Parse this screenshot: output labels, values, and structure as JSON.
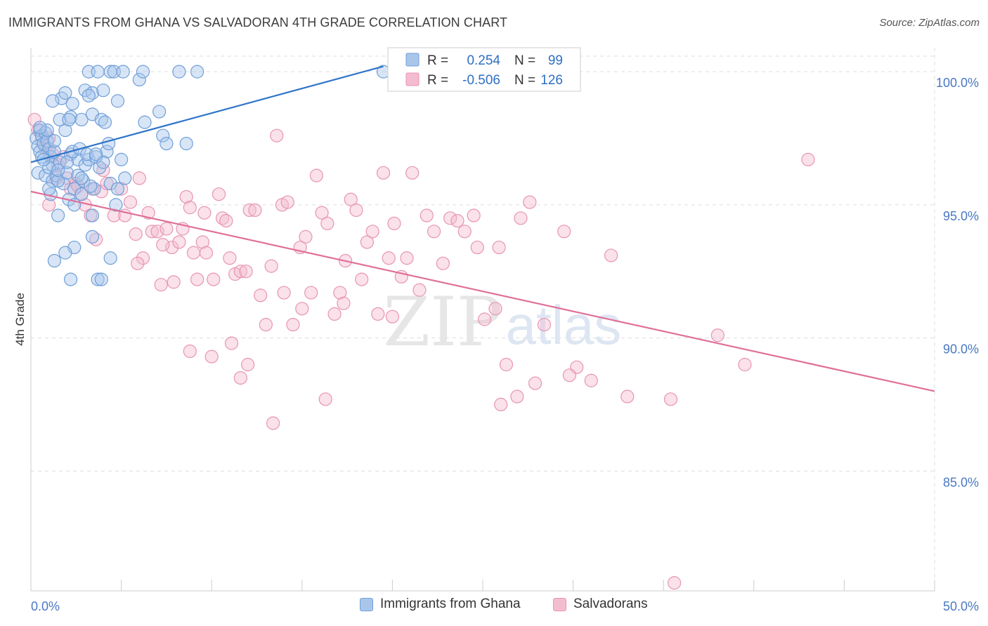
{
  "header": {
    "title": "IMMIGRANTS FROM GHANA VS SALVADORAN 4TH GRADE CORRELATION CHART",
    "source": "Source: ZipAtlas.com"
  },
  "watermark": {
    "zip": "ZIP",
    "atlas": "atlas"
  },
  "colors": {
    "blue_fill": "#a9c6ea",
    "blue_stroke": "#6f9fd8",
    "blue_line": "#2e74c9",
    "pink_fill": "#f4bcd0",
    "pink_stroke": "#e795b3",
    "pink_line": "#e07099",
    "axis_label": "#4a78c2",
    "grid": "#dddddd"
  },
  "legend": {
    "r_label": "R =",
    "n_label": "N =",
    "entries": [
      {
        "series": "Immigrants from Ghana",
        "r": "0.254",
        "n": "99"
      },
      {
        "series": "Salvadorans",
        "r": "-0.506",
        "n": "126"
      }
    ]
  },
  "chart_data": {
    "type": "scatter",
    "title": "IMMIGRANTS FROM GHANA VS SALVADORAN 4TH GRADE CORRELATION CHART",
    "xlabel": "",
    "ylabel": "4th Grade",
    "xlim": [
      0,
      50
    ],
    "ylim": [
      80.5,
      100.9
    ],
    "x_tick_labels": [
      "0.0%",
      "50.0%"
    ],
    "y_ticks": [
      85,
      90,
      95,
      100
    ],
    "y_tick_labels": [
      "85.0%",
      "90.0%",
      "95.0%",
      "100.0%"
    ],
    "grid": true,
    "legend_position": "top-center",
    "series": [
      {
        "name": "Immigrants from Ghana",
        "r": 0.254,
        "n": 99,
        "trendline": {
          "x": [
            0,
            19.5
          ],
          "y": [
            96.6,
            100.2
          ]
        },
        "points": [
          [
            0.3,
            97.5
          ],
          [
            0.4,
            97.2
          ],
          [
            0.5,
            97.8
          ],
          [
            0.5,
            97.0
          ],
          [
            0.6,
            97.6
          ],
          [
            0.7,
            97.3
          ],
          [
            0.8,
            97.7
          ],
          [
            0.9,
            97.4
          ],
          [
            1.0,
            97.1
          ],
          [
            1.1,
            96.8
          ],
          [
            1.2,
            96.5
          ],
          [
            1.3,
            97.0
          ],
          [
            0.4,
            96.2
          ],
          [
            0.6,
            96.8
          ],
          [
            0.8,
            96.1
          ],
          [
            1.0,
            96.4
          ],
          [
            1.2,
            95.9
          ],
          [
            1.4,
            96.1
          ],
          [
            1.6,
            96.6
          ],
          [
            1.8,
            95.8
          ],
          [
            2.0,
            96.2
          ],
          [
            2.2,
            96.9
          ],
          [
            2.4,
            95.6
          ],
          [
            2.6,
            96.7
          ],
          [
            2.8,
            95.4
          ],
          [
            3.0,
            96.5
          ],
          [
            3.2,
            96.7
          ],
          [
            3.5,
            95.6
          ],
          [
            3.8,
            96.4
          ],
          [
            4.2,
            97.0
          ],
          [
            1.1,
            95.4
          ],
          [
            1.5,
            95.9
          ],
          [
            2.1,
            95.2
          ],
          [
            2.9,
            95.9
          ],
          [
            3.3,
            95.7
          ],
          [
            4.4,
            95.8
          ],
          [
            4.8,
            95.6
          ],
          [
            0.9,
            97.8
          ],
          [
            1.3,
            97.4
          ],
          [
            1.9,
            97.8
          ],
          [
            2.3,
            97.0
          ],
          [
            2.7,
            97.1
          ],
          [
            3.1,
            96.9
          ],
          [
            3.6,
            96.8
          ],
          [
            4.0,
            96.6
          ],
          [
            1.6,
            98.2
          ],
          [
            2.2,
            98.3
          ],
          [
            2.8,
            98.2
          ],
          [
            3.4,
            98.4
          ],
          [
            3.9,
            98.2
          ],
          [
            4.1,
            98.1
          ],
          [
            5.0,
            96.7
          ],
          [
            4.3,
            97.3
          ],
          [
            5.2,
            96.0
          ],
          [
            1.7,
            99.0
          ],
          [
            1.9,
            99.2
          ],
          [
            2.3,
            98.8
          ],
          [
            3.0,
            99.3
          ],
          [
            3.4,
            99.2
          ],
          [
            4.0,
            99.3
          ],
          [
            4.8,
            98.9
          ],
          [
            1.2,
            98.9
          ],
          [
            2.1,
            98.2
          ],
          [
            3.2,
            99.1
          ],
          [
            6.3,
            98.1
          ],
          [
            7.1,
            98.5
          ],
          [
            7.3,
            97.6
          ],
          [
            7.5,
            97.3
          ],
          [
            8.6,
            97.3
          ],
          [
            6.0,
            99.7
          ],
          [
            4.4,
            100.0
          ],
          [
            3.2,
            100.0
          ],
          [
            3.7,
            100.0
          ],
          [
            4.6,
            100.0
          ],
          [
            5.1,
            100.0
          ],
          [
            6.2,
            100.0
          ],
          [
            8.2,
            100.0
          ],
          [
            9.2,
            100.0
          ],
          [
            19.5,
            100.0
          ],
          [
            2.4,
            95.0
          ],
          [
            1.5,
            94.6
          ],
          [
            3.4,
            94.6
          ],
          [
            3.4,
            93.8
          ],
          [
            2.4,
            93.4
          ],
          [
            1.9,
            93.2
          ],
          [
            1.3,
            92.9
          ],
          [
            4.4,
            93.0
          ],
          [
            2.2,
            92.2
          ],
          [
            3.7,
            92.2
          ],
          [
            3.9,
            92.2
          ],
          [
            4.7,
            95.0
          ],
          [
            2.0,
            96.6
          ],
          [
            2.6,
            96.1
          ],
          [
            1.0,
            95.6
          ],
          [
            0.7,
            96.7
          ],
          [
            1.5,
            96.3
          ],
          [
            3.6,
            96.9
          ],
          [
            0.5,
            97.9
          ],
          [
            2.8,
            96.0
          ]
        ]
      },
      {
        "name": "Salvadorans",
        "r": -0.506,
        "n": 126,
        "trendline": {
          "x": [
            0,
            50
          ],
          "y": [
            95.5,
            88.0
          ]
        },
        "points": [
          [
            0.2,
            98.2
          ],
          [
            0.4,
            97.8
          ],
          [
            0.6,
            97.4
          ],
          [
            0.8,
            97.1
          ],
          [
            1.0,
            97.5
          ],
          [
            1.2,
            96.9
          ],
          [
            1.5,
            96.5
          ],
          [
            1.8,
            96.8
          ],
          [
            2.0,
            96.0
          ],
          [
            2.2,
            95.6
          ],
          [
            2.5,
            95.8
          ],
          [
            2.8,
            95.4
          ],
          [
            3.0,
            95.0
          ],
          [
            3.4,
            95.6
          ],
          [
            3.6,
            93.7
          ],
          [
            3.9,
            95.5
          ],
          [
            4.2,
            95.8
          ],
          [
            4.6,
            94.6
          ],
          [
            5.0,
            95.6
          ],
          [
            5.2,
            94.6
          ],
          [
            5.5,
            95.1
          ],
          [
            5.8,
            93.9
          ],
          [
            6.0,
            96.0
          ],
          [
            6.2,
            93.0
          ],
          [
            6.5,
            94.7
          ],
          [
            6.7,
            94.0
          ],
          [
            7.0,
            94.0
          ],
          [
            7.2,
            92.0
          ],
          [
            7.5,
            94.1
          ],
          [
            7.8,
            93.4
          ],
          [
            7.9,
            92.1
          ],
          [
            8.2,
            93.6
          ],
          [
            8.4,
            94.1
          ],
          [
            8.6,
            95.3
          ],
          [
            8.8,
            94.9
          ],
          [
            9.0,
            93.2
          ],
          [
            9.2,
            92.2
          ],
          [
            9.5,
            93.6
          ],
          [
            9.7,
            93.2
          ],
          [
            10.1,
            92.2
          ],
          [
            10.4,
            95.4
          ],
          [
            10.6,
            94.5
          ],
          [
            10.8,
            94.4
          ],
          [
            11.0,
            93.0
          ],
          [
            11.3,
            92.4
          ],
          [
            11.6,
            92.5
          ],
          [
            11.9,
            92.5
          ],
          [
            12.1,
            94.8
          ],
          [
            12.4,
            94.8
          ],
          [
            12.7,
            91.6
          ],
          [
            13.0,
            90.5
          ],
          [
            13.3,
            92.7
          ],
          [
            13.6,
            97.6
          ],
          [
            13.9,
            95.0
          ],
          [
            14.2,
            95.1
          ],
          [
            14.5,
            90.5
          ],
          [
            14.9,
            93.4
          ],
          [
            15.2,
            93.8
          ],
          [
            15.5,
            91.7
          ],
          [
            15.8,
            96.1
          ],
          [
            16.1,
            94.7
          ],
          [
            16.4,
            94.3
          ],
          [
            16.8,
            90.9
          ],
          [
            17.1,
            91.7
          ],
          [
            17.4,
            92.9
          ],
          [
            17.7,
            95.2
          ],
          [
            18.0,
            94.8
          ],
          [
            18.3,
            92.2
          ],
          [
            18.6,
            93.6
          ],
          [
            18.9,
            94.0
          ],
          [
            19.2,
            90.9
          ],
          [
            19.5,
            96.2
          ],
          [
            19.8,
            93.0
          ],
          [
            20.1,
            94.3
          ],
          [
            20.5,
            92.3
          ],
          [
            20.8,
            93.0
          ],
          [
            21.1,
            96.2
          ],
          [
            21.5,
            91.8
          ],
          [
            21.9,
            94.6
          ],
          [
            22.3,
            94.0
          ],
          [
            22.8,
            92.8
          ],
          [
            23.2,
            94.5
          ],
          [
            23.6,
            94.4
          ],
          [
            24.0,
            94.0
          ],
          [
            24.5,
            94.6
          ],
          [
            25.1,
            90.7
          ],
          [
            25.7,
            91.1
          ],
          [
            26.3,
            89.0
          ],
          [
            27.1,
            94.5
          ],
          [
            27.6,
            95.1
          ],
          [
            28.4,
            90.5
          ],
          [
            29.5,
            94.0
          ],
          [
            30.2,
            88.9
          ],
          [
            31.0,
            88.4
          ],
          [
            32.1,
            93.1
          ],
          [
            33.0,
            87.8
          ],
          [
            35.4,
            87.7
          ],
          [
            38.0,
            90.1
          ],
          [
            39.5,
            89.0
          ],
          [
            43.0,
            96.7
          ],
          [
            8.8,
            89.5
          ],
          [
            10.0,
            89.3
          ],
          [
            11.1,
            89.8
          ],
          [
            11.6,
            88.5
          ],
          [
            16.3,
            87.7
          ],
          [
            20.0,
            90.8
          ],
          [
            26.0,
            87.5
          ],
          [
            26.9,
            87.8
          ],
          [
            35.6,
            80.8
          ],
          [
            13.4,
            86.8
          ],
          [
            9.6,
            94.7
          ],
          [
            4.0,
            96.3
          ],
          [
            2.6,
            95.7
          ],
          [
            1.4,
            96.0
          ],
          [
            3.3,
            94.6
          ],
          [
            5.9,
            92.8
          ],
          [
            7.3,
            93.5
          ],
          [
            12.0,
            89.0
          ],
          [
            14.0,
            91.7
          ],
          [
            17.3,
            91.3
          ],
          [
            24.7,
            93.4
          ],
          [
            25.9,
            93.4
          ],
          [
            27.9,
            88.3
          ],
          [
            29.8,
            88.6
          ],
          [
            15.0,
            91.1
          ],
          [
            1.0,
            95.0
          ]
        ]
      }
    ]
  }
}
